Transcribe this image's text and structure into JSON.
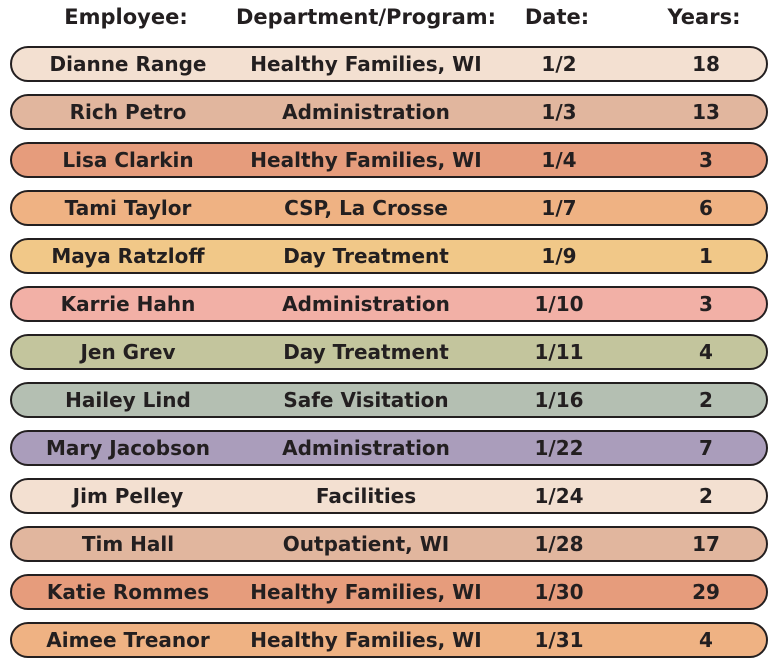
{
  "header": {
    "employee": "Employee:",
    "department": "Department/Program:",
    "date": "Date:",
    "years": "Years:"
  },
  "rows": [
    {
      "name": "Dianne Range",
      "department": "Healthy Families, WI",
      "date": "1/2",
      "years": "18",
      "color": "#f3e0d1"
    },
    {
      "name": "Rich Petro",
      "department": "Administration",
      "date": "1/3",
      "years": "13",
      "color": "#e1b69e"
    },
    {
      "name": "Lisa Clarkin",
      "department": "Healthy Families, WI",
      "date": "1/4",
      "years": "3",
      "color": "#e69c7c"
    },
    {
      "name": "Tami Taylor",
      "department": "CSP, La Crosse",
      "date": "1/7",
      "years": "6",
      "color": "#efb283"
    },
    {
      "name": "Maya Ratzloff",
      "department": "Day Treatment",
      "date": "1/9",
      "years": "1",
      "color": "#f1c888"
    },
    {
      "name": "Karrie Hahn",
      "department": "Administration",
      "date": "1/10",
      "years": "3",
      "color": "#f2b0a6"
    },
    {
      "name": "Jen Grev",
      "department": "Day Treatment",
      "date": "1/11",
      "years": "4",
      "color": "#c3c59d"
    },
    {
      "name": "Hailey Lind",
      "department": "Safe Visitation",
      "date": "1/16",
      "years": "2",
      "color": "#b4bfb2"
    },
    {
      "name": "Mary Jacobson",
      "department": "Administration",
      "date": "1/22",
      "years": "7",
      "color": "#aa9dbb"
    },
    {
      "name": "Jim Pelley",
      "department": "Facilities",
      "date": "1/24",
      "years": "2",
      "color": "#f3e0d1"
    },
    {
      "name": "Tim Hall",
      "department": "Outpatient, WI",
      "date": "1/28",
      "years": "17",
      "color": "#e1b69e"
    },
    {
      "name": "Katie Rommes",
      "department": "Healthy Families, WI",
      "date": "1/30",
      "years": "29",
      "color": "#e69c7c"
    },
    {
      "name": "Aimee Treanor",
      "department": "Healthy Families, WI",
      "date": "1/31",
      "years": "4",
      "color": "#efb283"
    }
  ]
}
